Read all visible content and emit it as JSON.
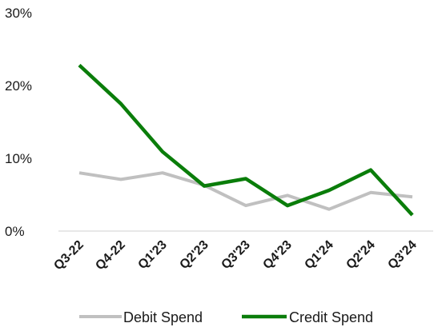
{
  "chart_data": {
    "type": "line",
    "categories": [
      "Q3-22",
      "Q4-22",
      "Q1'23",
      "Q2'23",
      "Q3'23",
      "Q4'23",
      "Q1'24",
      "Q2'24",
      "Q3'24"
    ],
    "y_ticks": [
      "0%",
      "10%",
      "20%",
      "30%"
    ],
    "ylim": [
      0,
      30
    ],
    "grid": false,
    "legend_position": "bottom",
    "series": [
      {
        "name": "Debit Spend",
        "color": "#c0c0c0",
        "values": [
          8.0,
          7.1,
          8.0,
          6.3,
          3.5,
          4.9,
          3.0,
          5.3,
          4.7
        ]
      },
      {
        "name": "Credit Spend",
        "color": "#0a7d0a",
        "values": [
          22.8,
          17.5,
          10.9,
          6.2,
          7.2,
          3.5,
          5.6,
          8.4,
          2.2
        ]
      }
    ]
  }
}
